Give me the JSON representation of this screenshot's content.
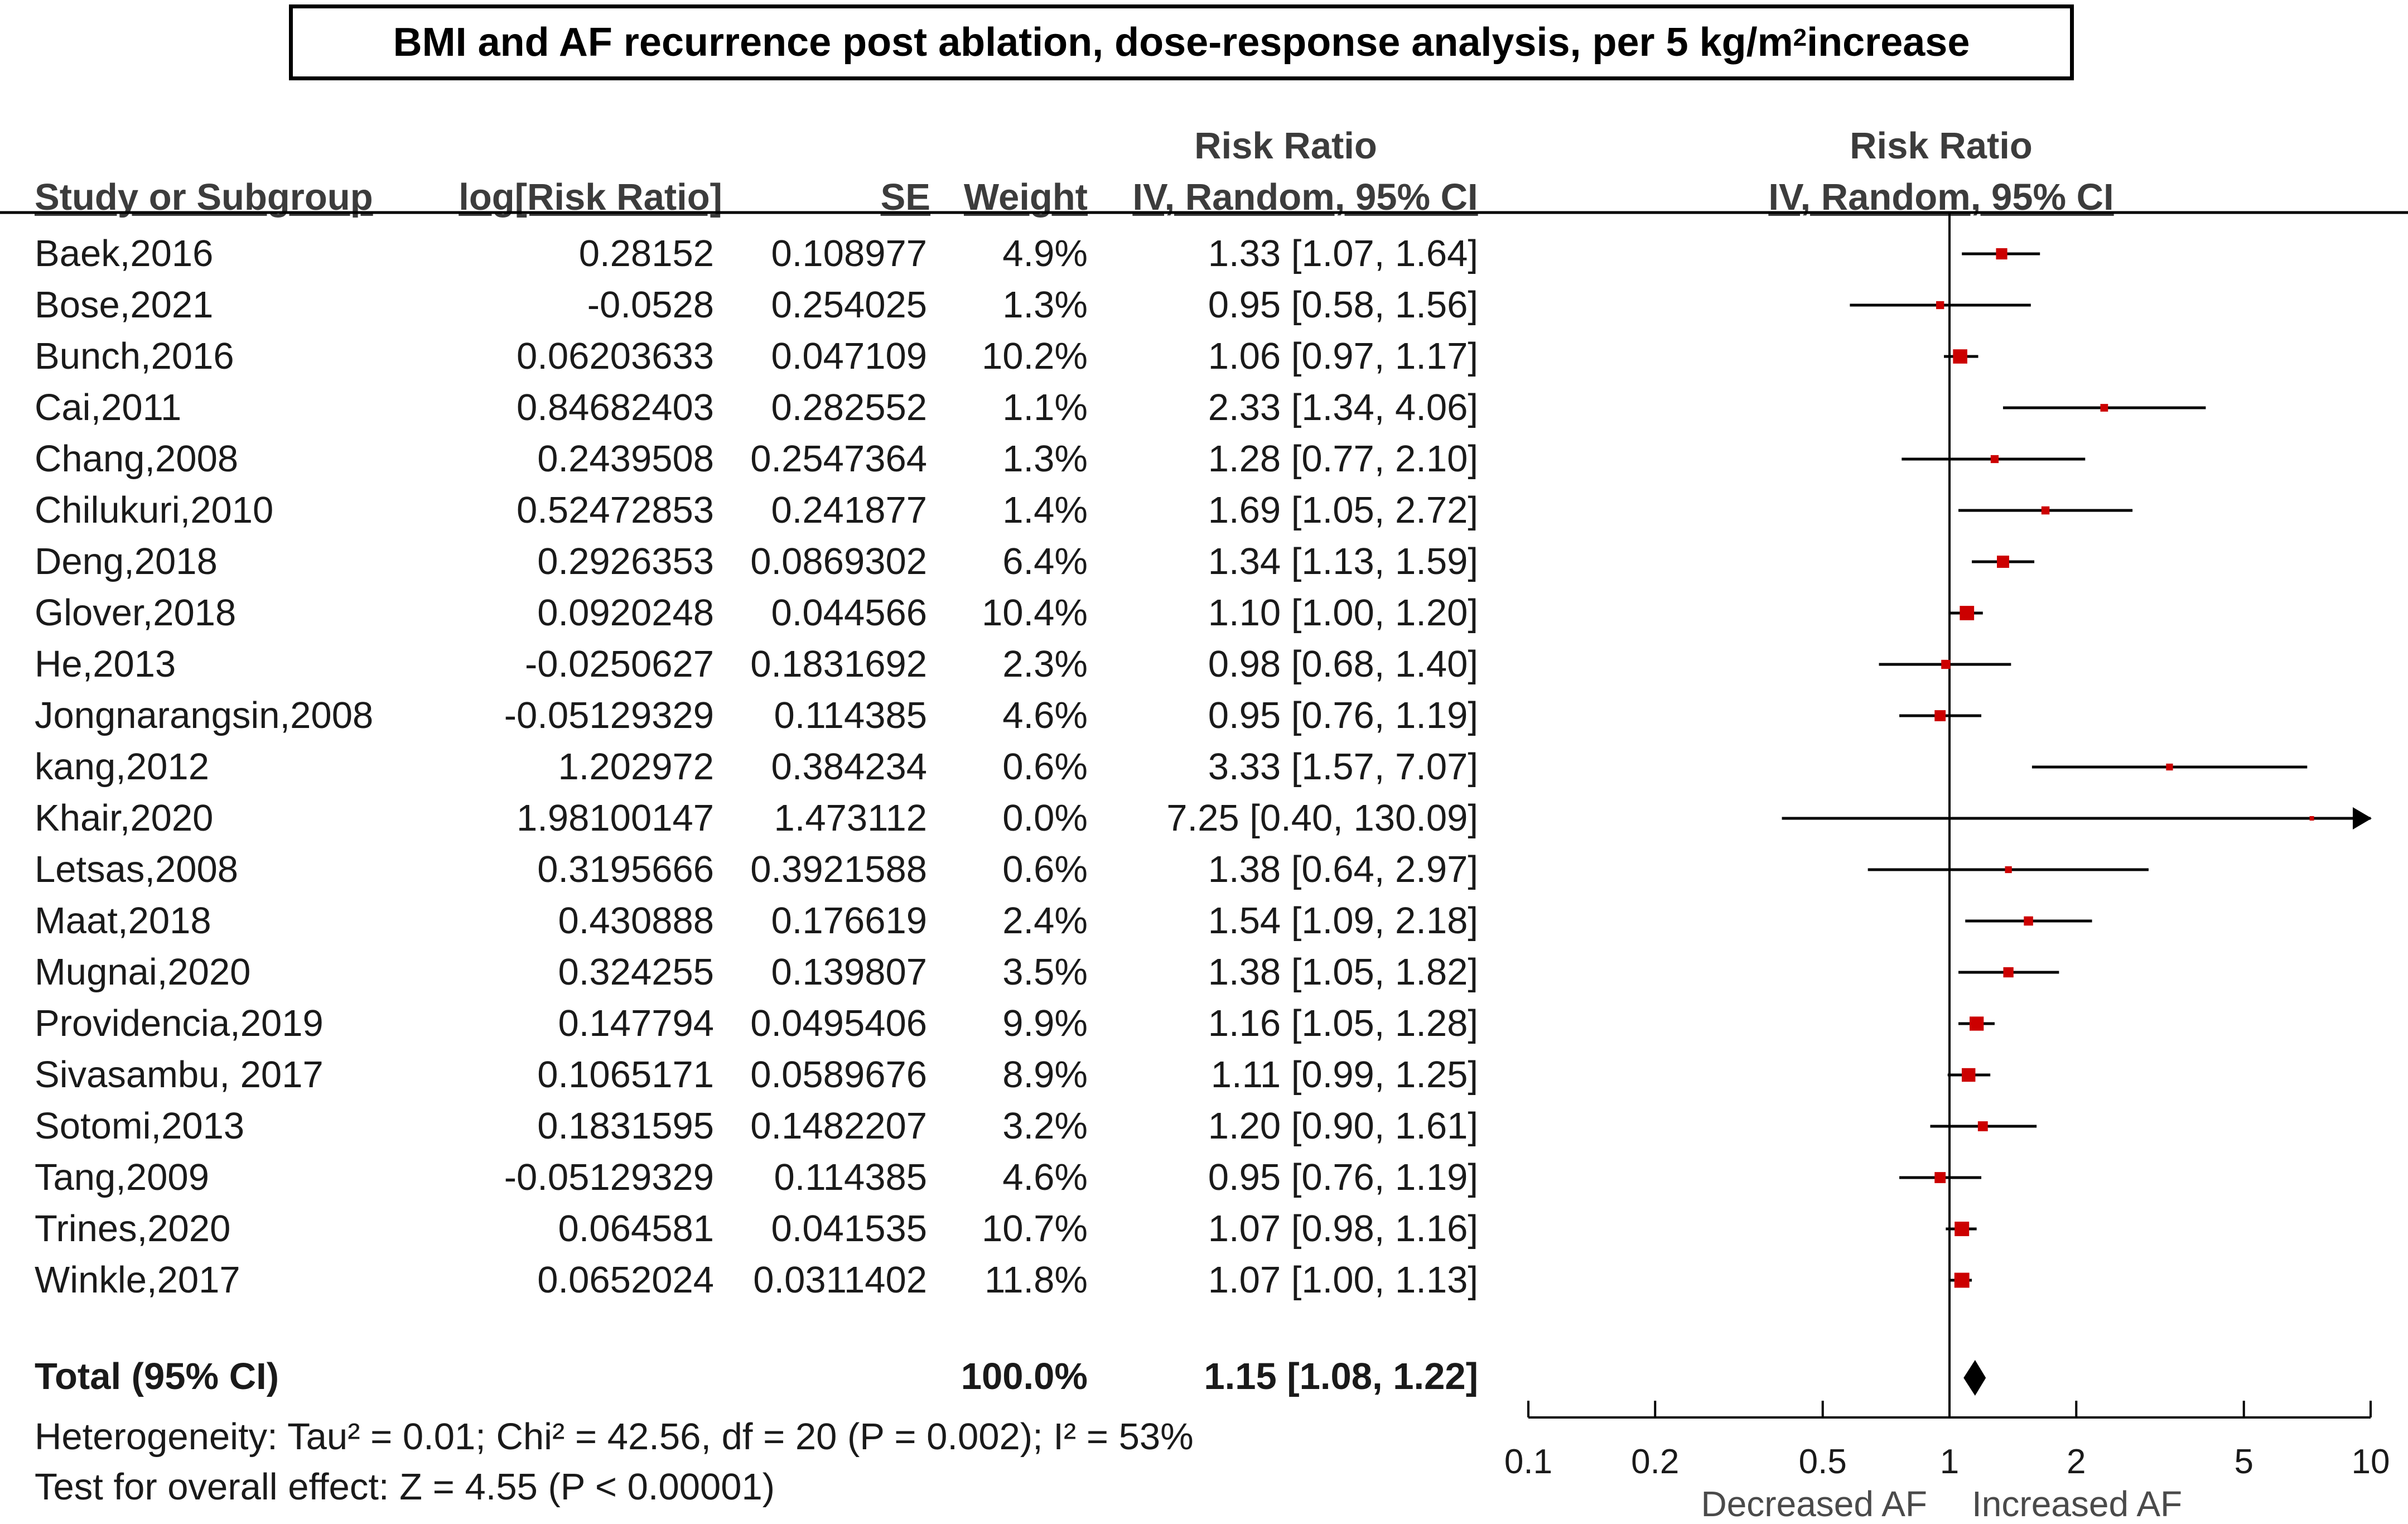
{
  "chart_data": {
    "type": "forest",
    "title": "BMI and AF recurrence post ablation, dose-response analysis, per 5 kg/m",
    "title_sup": "2",
    "title_end": " increase",
    "header": {
      "group_left": "Risk Ratio",
      "group_right": "Risk Ratio",
      "study": "Study or Subgroup",
      "logrr": "log[Risk Ratio]",
      "se": "SE",
      "weight": "Weight",
      "ci_left": "IV, Random, 95% CI",
      "ci_right": "IV, Random, 95% CI"
    },
    "studies": [
      {
        "name": "Baek,2016",
        "logrr": "0.28152",
        "se": "0.108977",
        "weight": "4.9%",
        "ci_text": "1.33 [1.07, 1.64]",
        "rr": 1.33,
        "lo": 1.07,
        "hi": 1.64,
        "w": 4.9
      },
      {
        "name": "Bose,2021",
        "logrr": "-0.0528",
        "se": "0.254025",
        "weight": "1.3%",
        "ci_text": "0.95 [0.58, 1.56]",
        "rr": 0.95,
        "lo": 0.58,
        "hi": 1.56,
        "w": 1.3
      },
      {
        "name": "Bunch,2016",
        "logrr": "0.06203633",
        "se": "0.047109",
        "weight": "10.2%",
        "ci_text": "1.06 [0.97, 1.17]",
        "rr": 1.06,
        "lo": 0.97,
        "hi": 1.17,
        "w": 10.2
      },
      {
        "name": "Cai,2011",
        "logrr": "0.84682403",
        "se": "0.282552",
        "weight": "1.1%",
        "ci_text": "2.33 [1.34, 4.06]",
        "rr": 2.33,
        "lo": 1.34,
        "hi": 4.06,
        "w": 1.1
      },
      {
        "name": "Chang,2008",
        "logrr": "0.2439508",
        "se": "0.2547364",
        "weight": "1.3%",
        "ci_text": "1.28 [0.77, 2.10]",
        "rr": 1.28,
        "lo": 0.77,
        "hi": 2.1,
        "w": 1.3
      },
      {
        "name": "Chilukuri,2010",
        "logrr": "0.52472853",
        "se": "0.241877",
        "weight": "1.4%",
        "ci_text": "1.69 [1.05, 2.72]",
        "rr": 1.69,
        "lo": 1.05,
        "hi": 2.72,
        "w": 1.4
      },
      {
        "name": "Deng,2018",
        "logrr": "0.2926353",
        "se": "0.0869302",
        "weight": "6.4%",
        "ci_text": "1.34 [1.13, 1.59]",
        "rr": 1.34,
        "lo": 1.13,
        "hi": 1.59,
        "w": 6.4
      },
      {
        "name": "Glover,2018",
        "logrr": "0.0920248",
        "se": "0.044566",
        "weight": "10.4%",
        "ci_text": "1.10 [1.00, 1.20]",
        "rr": 1.1,
        "lo": 1.0,
        "hi": 1.2,
        "w": 10.4
      },
      {
        "name": "He,2013",
        "logrr": "-0.0250627",
        "se": "0.1831692",
        "weight": "2.3%",
        "ci_text": "0.98 [0.68, 1.40]",
        "rr": 0.98,
        "lo": 0.68,
        "hi": 1.4,
        "w": 2.3
      },
      {
        "name": "Jongnarangsin,2008",
        "logrr": "-0.05129329",
        "se": "0.114385",
        "weight": "4.6%",
        "ci_text": "0.95 [0.76, 1.19]",
        "rr": 0.95,
        "lo": 0.76,
        "hi": 1.19,
        "w": 4.6
      },
      {
        "name": "kang,2012",
        "logrr": "1.202972",
        "se": "0.384234",
        "weight": "0.6%",
        "ci_text": "3.33 [1.57, 7.07]",
        "rr": 3.33,
        "lo": 1.57,
        "hi": 7.07,
        "w": 0.6
      },
      {
        "name": "Khair,2020",
        "logrr": "1.98100147",
        "se": "1.473112",
        "weight": "0.0%",
        "ci_text": "7.25 [0.40, 130.09]",
        "rr": 7.25,
        "lo": 0.4,
        "hi": 130.09,
        "w": 0.0
      },
      {
        "name": "Letsas,2008",
        "logrr": "0.3195666",
        "se": "0.3921588",
        "weight": "0.6%",
        "ci_text": "1.38 [0.64, 2.97]",
        "rr": 1.38,
        "lo": 0.64,
        "hi": 2.97,
        "w": 0.6
      },
      {
        "name": "Maat,2018",
        "logrr": "0.430888",
        "se": "0.176619",
        "weight": "2.4%",
        "ci_text": "1.54 [1.09, 2.18]",
        "rr": 1.54,
        "lo": 1.09,
        "hi": 2.18,
        "w": 2.4
      },
      {
        "name": "Mugnai,2020",
        "logrr": "0.324255",
        "se": "0.139807",
        "weight": "3.5%",
        "ci_text": "1.38 [1.05, 1.82]",
        "rr": 1.38,
        "lo": 1.05,
        "hi": 1.82,
        "w": 3.5
      },
      {
        "name": "Providencia,2019",
        "logrr": "0.147794",
        "se": "0.0495406",
        "weight": "9.9%",
        "ci_text": "1.16 [1.05, 1.28]",
        "rr": 1.16,
        "lo": 1.05,
        "hi": 1.28,
        "w": 9.9
      },
      {
        "name": "Sivasambu, 2017",
        "logrr": "0.1065171",
        "se": "0.0589676",
        "weight": "8.9%",
        "ci_text": "1.11 [0.99, 1.25]",
        "rr": 1.11,
        "lo": 0.99,
        "hi": 1.25,
        "w": 8.9
      },
      {
        "name": "Sotomi,2013",
        "logrr": "0.1831595",
        "se": "0.1482207",
        "weight": "3.2%",
        "ci_text": "1.20 [0.90, 1.61]",
        "rr": 1.2,
        "lo": 0.9,
        "hi": 1.61,
        "w": 3.2
      },
      {
        "name": "Tang,2009",
        "logrr": "-0.05129329",
        "se": "0.114385",
        "weight": "4.6%",
        "ci_text": "0.95 [0.76, 1.19]",
        "rr": 0.95,
        "lo": 0.76,
        "hi": 1.19,
        "w": 4.6
      },
      {
        "name": "Trines,2020",
        "logrr": "0.064581",
        "se": "0.041535",
        "weight": "10.7%",
        "ci_text": "1.07 [0.98, 1.16]",
        "rr": 1.07,
        "lo": 0.98,
        "hi": 1.16,
        "w": 10.7
      },
      {
        "name": "Winkle,2017",
        "logrr": "0.0652024",
        "se": "0.0311402",
        "weight": "11.8%",
        "ci_text": "1.07 [1.00, 1.13]",
        "rr": 1.07,
        "lo": 1.0,
        "hi": 1.13,
        "w": 11.8
      }
    ],
    "total": {
      "label": "Total (95% CI)",
      "weight": "100.0%",
      "ci_text": "1.15 [1.08, 1.22]",
      "rr": 1.15,
      "lo": 1.08,
      "hi": 1.22
    },
    "heterogeneity": "Heterogeneity: Tau² = 0.01; Chi² = 42.56, df = 20 (P = 0.002); I² = 53%",
    "overall_effect": "Test for overall effect: Z = 4.55 (P < 0.00001)",
    "axis": {
      "scale": "log",
      "range": [
        0.1,
        10
      ],
      "ticks": [
        0.1,
        0.2,
        0.5,
        1,
        2,
        5,
        10
      ],
      "tick_labels": [
        "0.1",
        "0.2",
        "0.5",
        "1",
        "2",
        "5",
        "10"
      ],
      "label_left": "Decreased AF",
      "label_right": "Increased AF"
    },
    "colors": {
      "marker": "#cc0000",
      "line": "#000000",
      "diamond": "#000000"
    }
  }
}
